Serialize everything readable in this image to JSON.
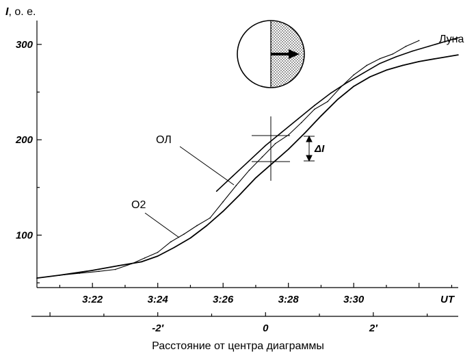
{
  "chart_data": {
    "type": "line",
    "y_axis": {
      "label_var": "I",
      "label_unit": ", о. е.",
      "ticks": [
        100,
        200,
        300
      ],
      "ylim": [
        45,
        325
      ]
    },
    "x_axis_time": {
      "label": "UT",
      "ticks": [
        "3:22",
        "3:24",
        "3:26",
        "3:28",
        "3:30"
      ],
      "xlim_minutes": [
        20.3,
        33.2
      ]
    },
    "x_axis_distance": {
      "label": "Расстояние от центра диаграммы",
      "ticks": [
        "-2′",
        "0",
        "2′"
      ]
    },
    "annotations": {
      "ol": "ОЛ",
      "o2": "О2",
      "moon": "Луна",
      "delta": "ΔI"
    },
    "series": [
      {
        "name": "Луна",
        "x_minutes": [
          20.3,
          21.0,
          22.0,
          22.8,
          23.5,
          24.0,
          24.5,
          25.0,
          25.5,
          26.0,
          26.5,
          27.0,
          27.5,
          28.0,
          28.5,
          29.0,
          29.5,
          30.0,
          30.5,
          31.0,
          31.5,
          32.0,
          32.5,
          33.2
        ],
        "values": [
          55,
          58,
          63,
          68,
          72,
          78,
          87,
          97,
          110,
          125,
          142,
          160,
          175,
          190,
          207,
          225,
          242,
          256,
          266,
          273,
          278,
          282,
          285,
          289
        ]
      },
      {
        "name": "ОЛ",
        "x_minutes": [
          25.8,
          26.3,
          26.8,
          27.3,
          27.8,
          28.3,
          28.8,
          29.3,
          29.8,
          30.3,
          30.8,
          31.3,
          31.8,
          32.3,
          32.8,
          33.2
        ],
        "values": [
          146,
          162,
          178,
          194,
          208,
          222,
          236,
          249,
          260,
          270,
          280,
          287,
          293,
          298,
          303,
          307
        ]
      },
      {
        "name": "О2",
        "x_minutes": [
          20.3,
          21.0,
          21.6,
          22.2,
          22.7,
          23.2,
          23.6,
          24.0,
          24.4,
          24.8,
          25.2,
          25.6,
          26.0,
          26.4,
          26.8,
          27.2,
          27.6,
          28.0,
          28.4,
          28.8,
          29.2,
          29.6,
          30.0,
          30.4,
          30.8,
          31.2,
          31.6,
          32.0
        ],
        "values": [
          55,
          58,
          60,
          62,
          64,
          70,
          76,
          82,
          93,
          101,
          110,
          118,
          135,
          152,
          168,
          182,
          196,
          205,
          218,
          232,
          240,
          255,
          268,
          278,
          285,
          290,
          298,
          304
        ]
      }
    ]
  }
}
